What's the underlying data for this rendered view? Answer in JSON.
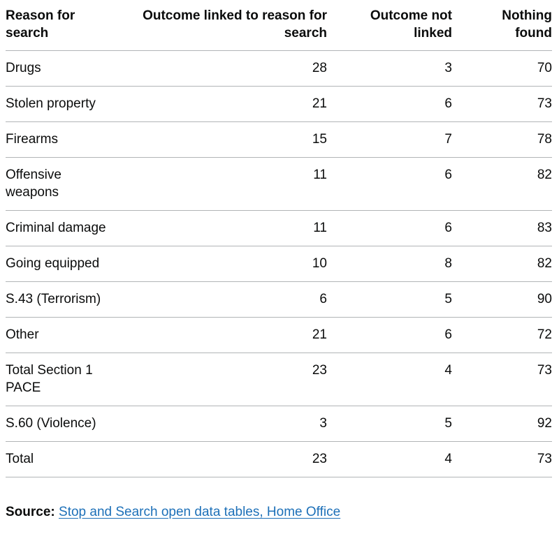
{
  "colors": {
    "text": "#0b0c0c",
    "border": "#b1b4b6",
    "link": "#1d70b8",
    "background": "#ffffff"
  },
  "chart_data": {
    "type": "table",
    "title": "",
    "columns": [
      "Reason for search",
      "Outcome linked to reason for search",
      "Outcome not linked",
      "Nothing found"
    ],
    "categories": [
      "Drugs",
      "Stolen property",
      "Firearms",
      "Offensive weapons",
      "Criminal damage",
      "Going equipped",
      "S.43 (Terrorism)",
      "Other",
      "Total Section 1 PACE",
      "S.60 (Violence)",
      "Total"
    ],
    "series": [
      {
        "name": "Outcome linked to reason for search",
        "values": [
          28,
          21,
          15,
          11,
          11,
          10,
          6,
          21,
          23,
          3,
          23
        ]
      },
      {
        "name": "Outcome not linked",
        "values": [
          3,
          6,
          7,
          6,
          6,
          8,
          5,
          6,
          4,
          5,
          4
        ]
      },
      {
        "name": "Nothing found",
        "values": [
          70,
          73,
          78,
          82,
          83,
          82,
          90,
          72,
          73,
          92,
          73
        ]
      }
    ],
    "source": "Stop and Search open data tables, Home Office"
  },
  "source": {
    "label": "Source:",
    "link_text": "Stop and Search open data tables, Home Office"
  }
}
